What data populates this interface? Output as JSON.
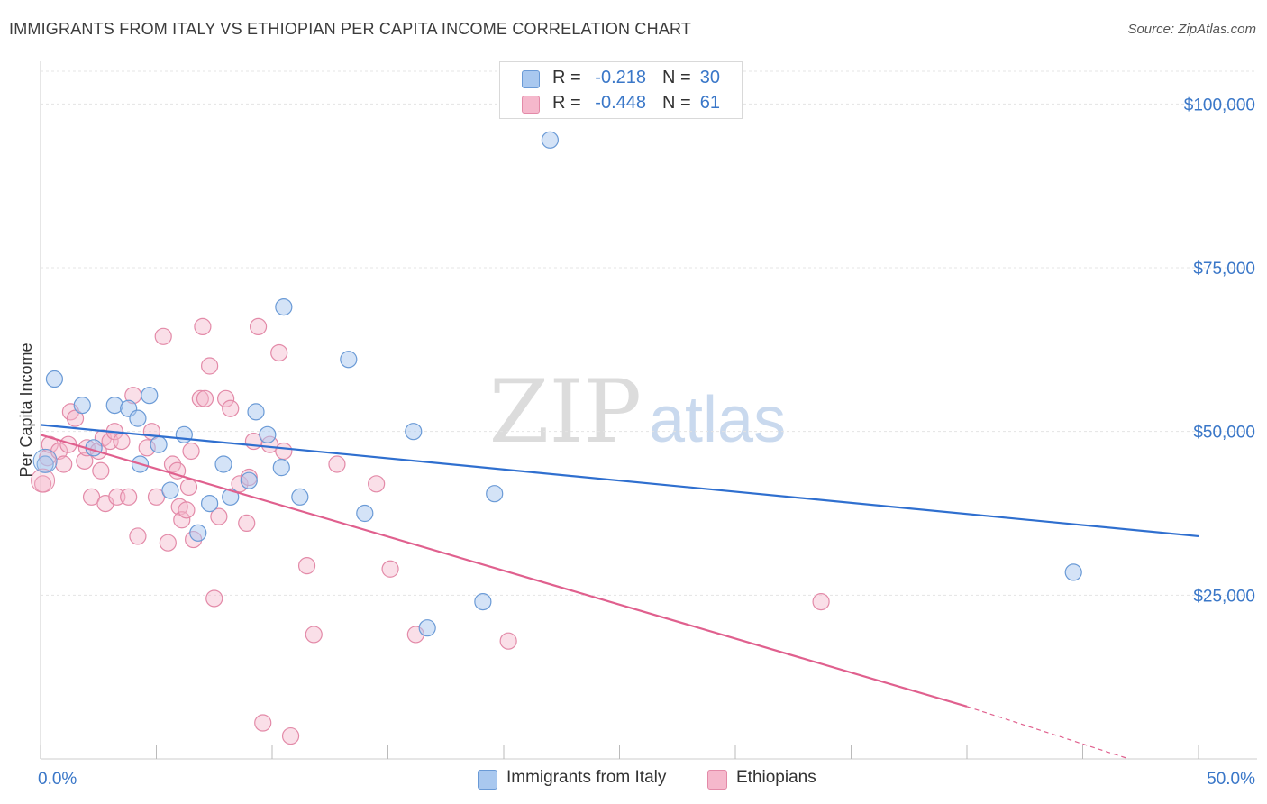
{
  "title": "IMMIGRANTS FROM ITALY VS ETHIOPIAN PER CAPITA INCOME CORRELATION CHART",
  "source": "Source: ZipAtlas.com",
  "watermark": {
    "zip": "ZIP",
    "atlas": "atlas"
  },
  "legend": {
    "rows": [
      {
        "r_label": "R =",
        "r_value": "-0.218",
        "n_label": "N =",
        "n_value": "30",
        "color": "#a9c8ef"
      },
      {
        "r_label": "R =",
        "r_value": "-0.448",
        "n_label": "N =",
        "n_value": "61",
        "color": "#f5b8cc"
      }
    ]
  },
  "bottom_legend": {
    "items": [
      {
        "label": "Immigrants from Italy",
        "color": "#a9c8ef"
      },
      {
        "label": "Ethiopians",
        "color": "#f5b8cc"
      }
    ]
  },
  "chart_data": {
    "type": "scatter",
    "ylabel": "Per Capita Income",
    "xlabel": "",
    "xlim": [
      0,
      50
    ],
    "ylim": [
      0,
      105000
    ],
    "x_tick_labels": [
      "0.0%",
      "50.0%"
    ],
    "y_ticks": [
      25000,
      50000,
      75000,
      100000
    ],
    "y_tick_labels": [
      "$25,000",
      "$50,000",
      "$75,000",
      "$100,000"
    ],
    "grid": true,
    "colors": {
      "italy_fill": "#a9c8ef",
      "italy_stroke": "#6a9ad6",
      "italy_line": "#2f6fcf",
      "eth_fill": "#f5b8cc",
      "eth_stroke": "#e38aa8",
      "eth_line": "#e0608e",
      "tick_label": "#3a77c8"
    },
    "series": [
      {
        "name": "Immigrants from Italy",
        "points": [
          [
            0.2,
            45000
          ],
          [
            0.6,
            58000
          ],
          [
            1.8,
            54000
          ],
          [
            3.2,
            54000
          ],
          [
            3.8,
            53500
          ],
          [
            4.2,
            52000
          ],
          [
            4.3,
            45000
          ],
          [
            4.7,
            55500
          ],
          [
            5.1,
            48000
          ],
          [
            5.6,
            41000
          ],
          [
            6.2,
            49500
          ],
          [
            6.8,
            34500
          ],
          [
            7.3,
            39000
          ],
          [
            7.9,
            45000
          ],
          [
            8.2,
            40000
          ],
          [
            9.0,
            42500
          ],
          [
            9.8,
            49500
          ],
          [
            10.4,
            44500
          ],
          [
            10.5,
            69000
          ],
          [
            11.2,
            40000
          ],
          [
            13.3,
            61000
          ],
          [
            14.0,
            37500
          ],
          [
            16.1,
            50000
          ],
          [
            16.7,
            20000
          ],
          [
            19.1,
            24000
          ],
          [
            19.6,
            40500
          ],
          [
            22.0,
            94500
          ],
          [
            44.6,
            28500
          ],
          [
            2.3,
            47500
          ],
          [
            9.3,
            53000
          ]
        ],
        "trend": {
          "x0": 0,
          "y0": 51000,
          "x1": 50,
          "y1": 34000
        }
      },
      {
        "name": "Ethiopians",
        "points": [
          [
            0.1,
            42000
          ],
          [
            0.3,
            46000
          ],
          [
            0.4,
            48000
          ],
          [
            0.8,
            47000
          ],
          [
            1.0,
            45000
          ],
          [
            1.2,
            48000
          ],
          [
            1.3,
            53000
          ],
          [
            1.5,
            52000
          ],
          [
            1.9,
            45500
          ],
          [
            2.0,
            47500
          ],
          [
            2.2,
            40000
          ],
          [
            2.5,
            47000
          ],
          [
            2.7,
            49000
          ],
          [
            2.8,
            39000
          ],
          [
            3.0,
            48500
          ],
          [
            3.2,
            50000
          ],
          [
            3.3,
            40000
          ],
          [
            3.5,
            48500
          ],
          [
            3.8,
            40000
          ],
          [
            4.0,
            55500
          ],
          [
            4.2,
            34000
          ],
          [
            4.6,
            47500
          ],
          [
            4.8,
            50000
          ],
          [
            5.0,
            40000
          ],
          [
            5.3,
            64500
          ],
          [
            5.5,
            33000
          ],
          [
            5.7,
            45000
          ],
          [
            5.9,
            44000
          ],
          [
            6.0,
            38500
          ],
          [
            6.1,
            36500
          ],
          [
            6.3,
            38000
          ],
          [
            6.5,
            47000
          ],
          [
            6.6,
            33500
          ],
          [
            6.9,
            55000
          ],
          [
            7.0,
            66000
          ],
          [
            7.1,
            55000
          ],
          [
            7.3,
            60000
          ],
          [
            7.5,
            24500
          ],
          [
            7.7,
            37000
          ],
          [
            8.0,
            55000
          ],
          [
            8.2,
            53500
          ],
          [
            8.6,
            42000
          ],
          [
            8.9,
            36000
          ],
          [
            9.2,
            48500
          ],
          [
            9.4,
            66000
          ],
          [
            9.6,
            5500
          ],
          [
            9.9,
            48000
          ],
          [
            10.3,
            62000
          ],
          [
            10.5,
            47000
          ],
          [
            10.8,
            3500
          ],
          [
            11.5,
            29500
          ],
          [
            11.8,
            19000
          ],
          [
            12.8,
            45000
          ],
          [
            14.5,
            42000
          ],
          [
            15.1,
            29000
          ],
          [
            16.2,
            19000
          ],
          [
            20.2,
            18000
          ],
          [
            33.7,
            24000
          ],
          [
            2.6,
            44000
          ],
          [
            6.4,
            41500
          ],
          [
            9.0,
            43000
          ]
        ],
        "trend": {
          "x0": 0,
          "y0": 49500,
          "x1": 40,
          "y1": 8000,
          "dash_to_x": 47,
          "dash_to_y": 0
        }
      }
    ]
  }
}
